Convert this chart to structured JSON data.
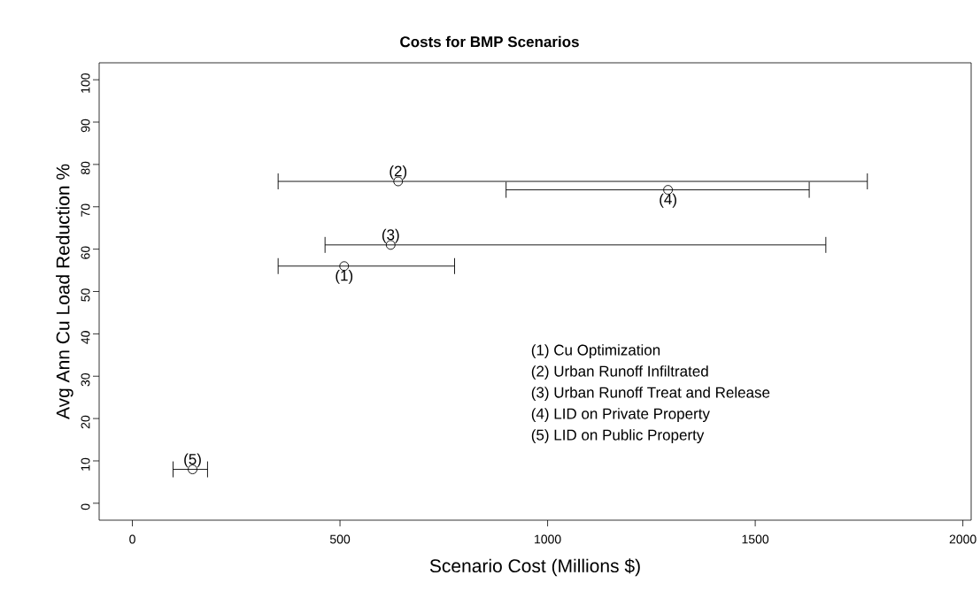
{
  "chart_data": {
    "type": "scatter",
    "title": "Costs for BMP Scenarios",
    "xlabel": "Scenario Cost (Millions $)",
    "ylabel": "Avg Ann Cu Load Reduction %",
    "x": [
      510,
      640,
      622,
      1290,
      145
    ],
    "values": [
      56,
      76,
      61,
      74,
      8
    ],
    "xerrors": [
      [
        351,
        776
      ],
      [
        351,
        1770
      ],
      [
        464,
        1670
      ],
      [
        900,
        1630
      ],
      [
        98,
        181
      ]
    ],
    "color": "#000000",
    "marker": "circle",
    "xlim": [
      -80,
      2020
    ],
    "ylim": [
      -4,
      104
    ],
    "xticks": [
      0,
      500,
      1000,
      1500,
      2000
    ],
    "yticks": [
      0,
      10,
      20,
      30,
      40,
      50,
      60,
      70,
      80,
      90,
      100
    ],
    "annotations": [
      "(1)",
      "(2)",
      "(3)",
      "(4)",
      "(5)",
      "(1) Cu Optimization",
      "(2) Urban Runoff Infiltrated",
      "(3) Urban Runoff Treat and Release",
      "(4) LID on Private Property",
      "(5) LID on Public Property"
    ]
  }
}
